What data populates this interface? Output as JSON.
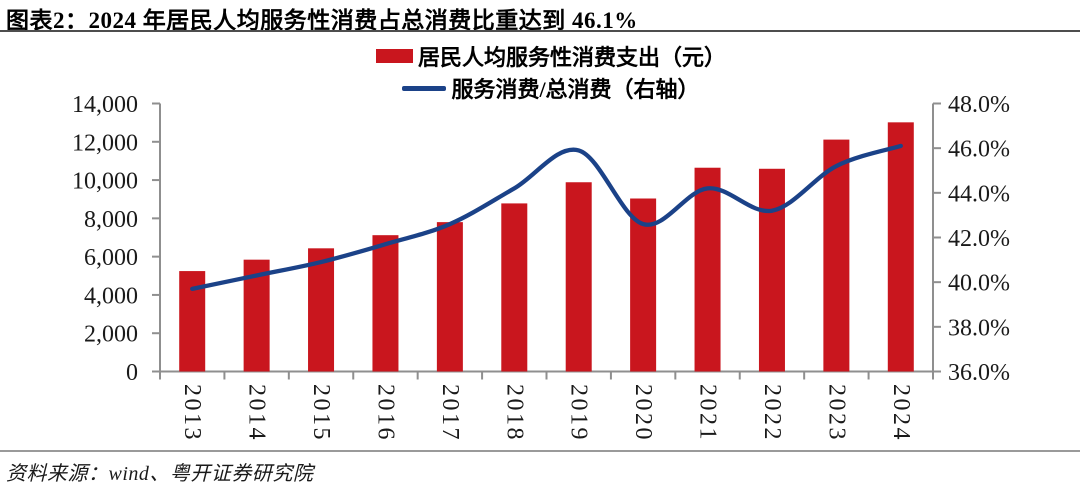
{
  "header": {
    "title": "图表2：2024 年居民人均服务性消费占总消费比重达到 46.1%"
  },
  "footer": {
    "source": "资料来源：wind、粤开证券研究院"
  },
  "colors": {
    "bar": "#c9161e",
    "line": "#1b4288",
    "axis": "#8f8f8f"
  },
  "chart_data": {
    "type": "bar",
    "subtype": "combo-bar-line-dual-axis",
    "categories": [
      "2013",
      "2014",
      "2015",
      "2016",
      "2017",
      "2018",
      "2019",
      "2020",
      "2021",
      "2022",
      "2023",
      "2024"
    ],
    "series": [
      {
        "name": "居民人均服务性消费支出（元）",
        "type": "bar",
        "axis": "left",
        "color": "#c9161e",
        "values": [
          5246,
          5842,
          6435,
          7121,
          7803,
          8781,
          9886,
          9037,
          10645,
          10590,
          12114,
          13016
        ]
      },
      {
        "name": "服务消费/总消费（右轴）",
        "type": "line",
        "axis": "right",
        "color": "#1b4288",
        "values": [
          39.7,
          40.3,
          40.9,
          41.7,
          42.6,
          44.2,
          45.9,
          42.6,
          44.2,
          43.2,
          45.2,
          46.1
        ]
      }
    ],
    "left_axis": {
      "min": 0,
      "max": 14000,
      "step": 2000,
      "tick_labels": [
        "0",
        "2,000",
        "4,000",
        "6,000",
        "8,000",
        "10,000",
        "12,000",
        "14,000"
      ]
    },
    "right_axis": {
      "min": 36,
      "max": 48,
      "step": 2,
      "tick_labels": [
        "36.0%",
        "38.0%",
        "40.0%",
        "42.0%",
        "44.0%",
        "46.0%",
        "48.0%"
      ]
    },
    "legend_position": "top-center",
    "grid": false,
    "line_smoothing": true
  }
}
